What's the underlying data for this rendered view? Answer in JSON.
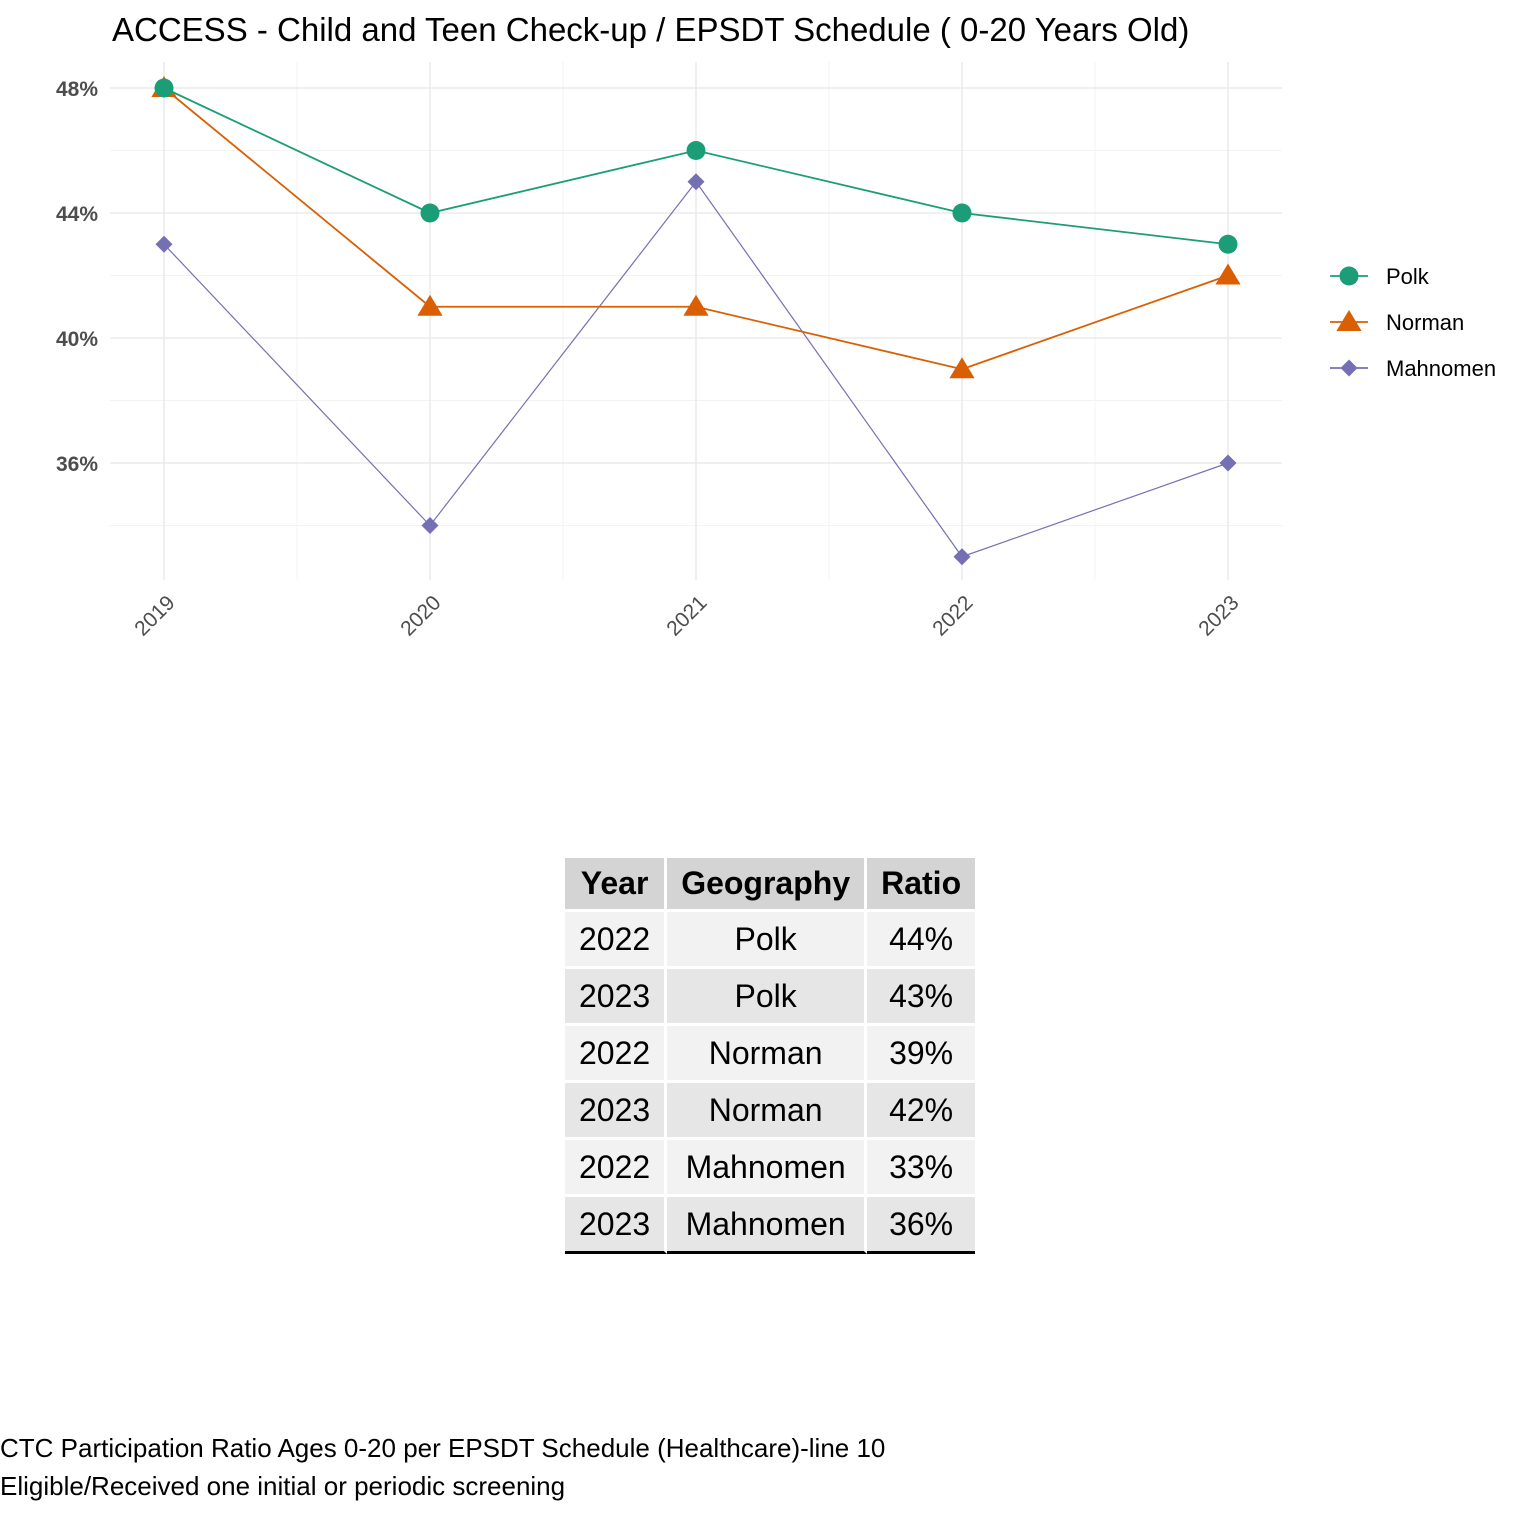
{
  "chart_data": {
    "type": "line",
    "title": "ACCESS - Child and Teen Check-up / EPSDT Schedule ( 0-20  Years Old)",
    "xlabel": "",
    "ylabel": "",
    "x": [
      "2019",
      "2020",
      "2021",
      "2022",
      "2023"
    ],
    "yticks": [
      "48%",
      "44%",
      "40%",
      "36%"
    ],
    "ytick_values": [
      48,
      44,
      40,
      36
    ],
    "ylim": [
      31.3,
      48.8
    ],
    "grid": true,
    "legend_position": "right",
    "series": [
      {
        "name": "Polk",
        "values": [
          48,
          44,
          46,
          44,
          43
        ],
        "color": "#1b9e77",
        "marker": "circle"
      },
      {
        "name": "Norman",
        "values": [
          48,
          41,
          41,
          39,
          42
        ],
        "color": "#d95f02",
        "marker": "triangle"
      },
      {
        "name": "Mahnomen",
        "values": [
          43,
          34,
          45,
          33,
          36
        ],
        "color": "#7570b3",
        "marker": "diamond"
      }
    ]
  },
  "table": {
    "headers": [
      "Year",
      "Geography",
      "Ratio"
    ],
    "rows": [
      [
        "2022",
        "Polk",
        "44%"
      ],
      [
        "2023",
        "Polk",
        "43%"
      ],
      [
        "2022",
        "Norman",
        "39%"
      ],
      [
        "2023",
        "Norman",
        "42%"
      ],
      [
        "2022",
        "Mahnomen",
        "33%"
      ],
      [
        "2023",
        "Mahnomen",
        "36%"
      ]
    ]
  },
  "caption": {
    "line1": "CTC Participation Ratio Ages 0-20 per EPSDT Schedule (Healthcare)-line 10",
    "line2": "Eligible/Received one initial or periodic screening"
  }
}
